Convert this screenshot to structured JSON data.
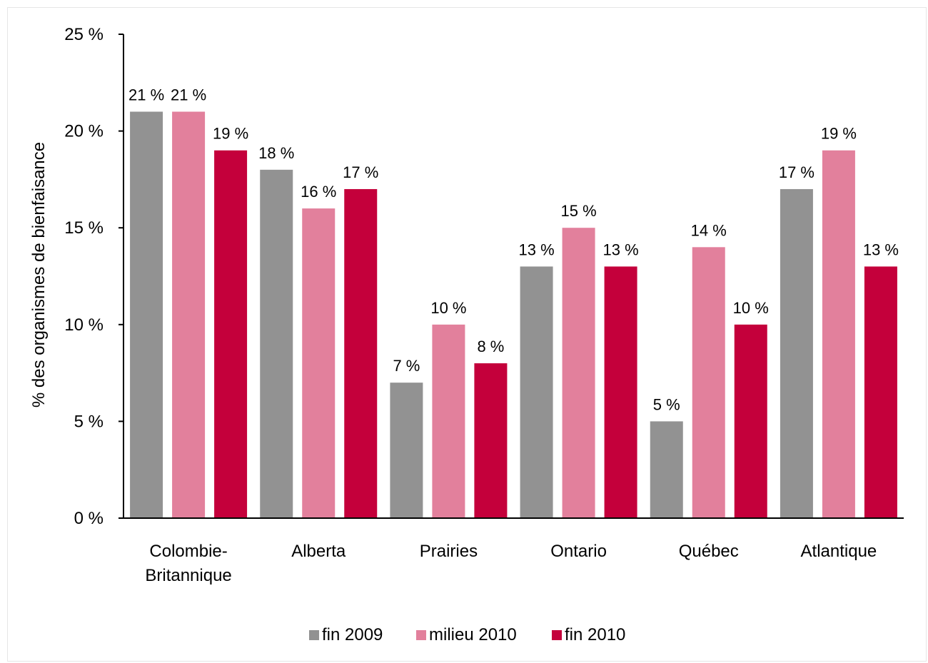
{
  "chart_data": {
    "type": "bar",
    "ylabel": "% des organismes de bienfaisance",
    "ylim": [
      0,
      25
    ],
    "yticks": [
      0,
      5,
      10,
      15,
      20,
      25
    ],
    "ytick_labels": [
      "0 %",
      "5 %",
      "10 %",
      "15 %",
      "20 %",
      "25 %"
    ],
    "categories": [
      [
        "Colombie-",
        "Britannique"
      ],
      [
        "Alberta"
      ],
      [
        "Prairies"
      ],
      [
        "Ontario"
      ],
      [
        "Québec"
      ],
      [
        "Atlantique"
      ]
    ],
    "series": [
      {
        "name": "fin 2009",
        "color": "#929292",
        "values": [
          21,
          18,
          7,
          13,
          5,
          17
        ],
        "labels": [
          "21 %",
          "18 %",
          "7 %",
          "13 %",
          "5 %",
          "17 %"
        ]
      },
      {
        "name": "milieu 2010",
        "color": "#e2809c",
        "values": [
          21,
          16,
          10,
          15,
          14,
          19
        ],
        "labels": [
          "21 %",
          "16 %",
          "10 %",
          "15 %",
          "14 %",
          "19 %"
        ]
      },
      {
        "name": "fin 2010",
        "color": "#c4003b",
        "values": [
          19,
          17,
          8,
          13,
          10,
          13
        ],
        "labels": [
          "19 %",
          "17 %",
          "8 %",
          "13 %",
          "10 %",
          "13 %"
        ]
      }
    ],
    "legend_position": "bottom",
    "grid": false
  }
}
